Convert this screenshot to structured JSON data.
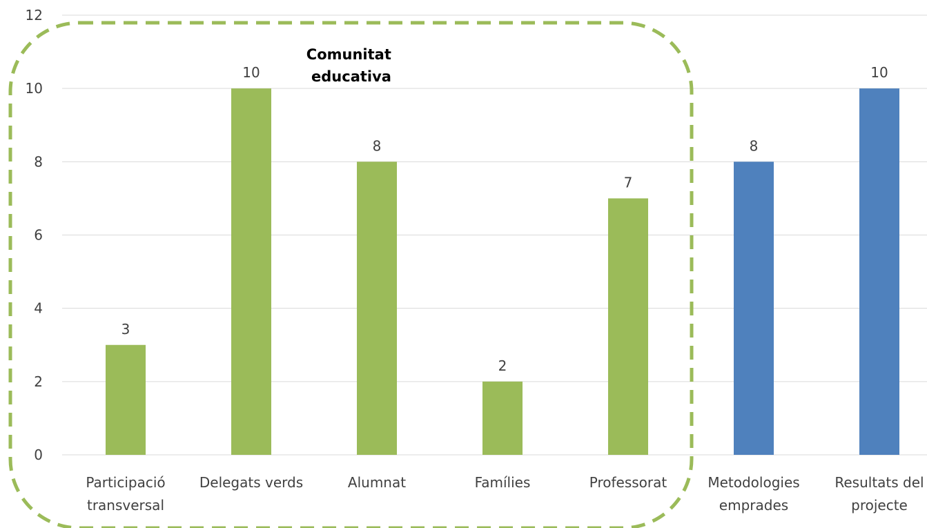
{
  "chart_data": {
    "type": "bar",
    "title": "",
    "xlabel": "",
    "ylabel": "",
    "ylim": [
      0,
      12
    ],
    "yticks": [
      0,
      2,
      4,
      6,
      8,
      10,
      12
    ],
    "grid": true,
    "categories": [
      [
        "Participació",
        "transversal"
      ],
      [
        "Delegats verds"
      ],
      [
        "Alumnat"
      ],
      [
        "Famílies"
      ],
      [
        "Professorat"
      ],
      [
        "Metodologies",
        "emprades"
      ],
      [
        "Resultats del",
        "projecte"
      ]
    ],
    "values": [
      3,
      10,
      8,
      2,
      7,
      8,
      10
    ],
    "bar_colors": [
      "#9bbb59",
      "#9bbb59",
      "#9bbb59",
      "#9bbb59",
      "#9bbb59",
      "#4f81bd",
      "#4f81bd"
    ],
    "annotation": {
      "lines": [
        "Comunitat",
        "educativa"
      ],
      "group": "first five categories",
      "box_color": "#9bbb59"
    }
  }
}
